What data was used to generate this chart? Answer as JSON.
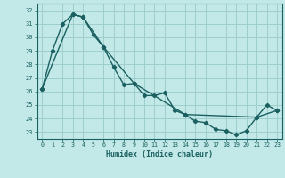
{
  "xlabel": "Humidex (Indice chaleur)",
  "bg_color": "#c2e8e8",
  "grid_color": "#9ecece",
  "line_color": "#1a6060",
  "xlim": [
    -0.5,
    23.5
  ],
  "ylim": [
    22.5,
    32.5
  ],
  "xticks": [
    0,
    1,
    2,
    3,
    4,
    5,
    6,
    7,
    8,
    9,
    10,
    11,
    12,
    13,
    14,
    15,
    16,
    17,
    18,
    19,
    20,
    21,
    22,
    23
  ],
  "yticks": [
    23,
    24,
    25,
    26,
    27,
    28,
    29,
    30,
    31,
    32
  ],
  "line1_x": [
    0,
    1,
    2,
    3,
    4,
    5,
    6,
    7,
    8,
    9,
    10,
    11,
    12,
    13,
    14,
    15,
    16,
    17,
    18,
    19,
    20,
    21,
    22,
    23
  ],
  "line1_y": [
    26.2,
    29.0,
    31.0,
    31.7,
    31.5,
    30.2,
    29.3,
    27.8,
    26.5,
    26.6,
    25.7,
    25.7,
    25.9,
    24.6,
    24.3,
    23.8,
    23.7,
    23.2,
    23.1,
    22.8,
    23.1,
    24.1,
    25.0,
    24.6
  ],
  "line2_x": [
    0,
    3,
    4,
    6,
    9,
    14,
    21,
    23
  ],
  "line2_y": [
    26.2,
    31.7,
    31.5,
    29.3,
    26.6,
    24.3,
    24.1,
    24.6
  ]
}
